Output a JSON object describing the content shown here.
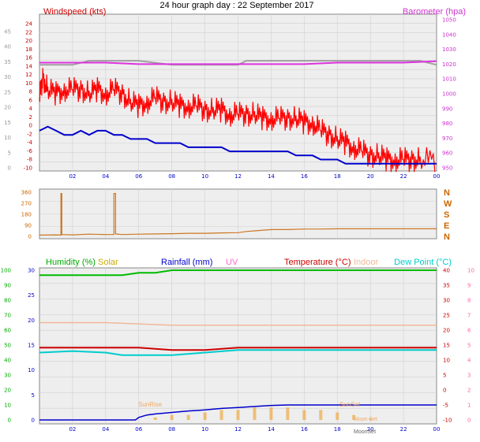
{
  "title": "24 hour graph day : 22 September 2017",
  "colors": {
    "windspeed": "#cc0000",
    "gust": "#ff0000",
    "avgwind": "#0000cc",
    "barometer": "#dd33dd",
    "baro_grey": "#a0a0a0",
    "direction": "#cc7722",
    "humidity": "#00bb00",
    "solar": "#ccaa00",
    "rainfall": "#0000cc",
    "uv": "#ff66cc",
    "temperature": "#cc0000",
    "indoor": "#f0b89a",
    "dewpoint": "#00cccc",
    "sun_bars": "#f0aa44",
    "plot_bg": "#eeeeee",
    "grid": "#d0d0d0"
  },
  "x_ticks": [
    "02",
    "04",
    "06",
    "08",
    "10",
    "12",
    "14",
    "16",
    "18",
    "20",
    "22",
    "00"
  ],
  "chart_data": [
    {
      "type": "line",
      "title": "Windspeed / Barometer",
      "left_label": "Windspeed (kts)",
      "right_label": "Barometer (hpa)",
      "left_ticks_red": [
        "24",
        "22",
        "20",
        "18",
        "16",
        "14",
        "12",
        "10",
        "8",
        "6",
        "4",
        "2",
        "0",
        "-2",
        "-4",
        "-6",
        "-8",
        "-10"
      ],
      "left_ticks_grey": [
        "45",
        "40",
        "35",
        "30",
        "25",
        "20",
        "15",
        "10",
        "5",
        "0"
      ],
      "right_ticks": [
        "1050",
        "1040",
        "1030",
        "1020",
        "1010",
        "1000",
        "990",
        "980",
        "970",
        "960",
        "950"
      ],
      "ylim_left": [
        -10,
        25
      ],
      "ylim_right": [
        950,
        1050
      ],
      "series": [
        {
          "key": "gust",
          "points": [
            [
              0.0,
              7
            ],
            [
              0.2,
              12
            ],
            [
              0.5,
              9
            ],
            [
              1,
              8
            ],
            [
              1.5,
              9
            ],
            [
              2,
              9
            ],
            [
              2.5,
              9
            ],
            [
              3,
              8
            ],
            [
              3.5,
              9
            ],
            [
              4,
              8
            ],
            [
              4.5,
              9
            ],
            [
              5,
              8
            ],
            [
              5.5,
              6
            ],
            [
              6,
              5
            ],
            [
              6.5,
              6
            ],
            [
              7,
              7
            ],
            [
              7.5,
              6
            ],
            [
              8,
              6
            ],
            [
              8.5,
              5
            ],
            [
              9,
              5
            ],
            [
              9.5,
              5
            ],
            [
              10,
              4
            ],
            [
              10.5,
              4
            ],
            [
              11,
              4
            ],
            [
              11.5,
              3
            ],
            [
              12,
              3
            ],
            [
              12.5,
              3
            ],
            [
              13,
              3
            ],
            [
              13.5,
              2
            ],
            [
              14,
              2
            ],
            [
              14.5,
              2
            ],
            [
              15,
              2
            ],
            [
              15.5,
              2
            ],
            [
              16,
              1
            ],
            [
              16.5,
              1
            ],
            [
              17,
              -1
            ],
            [
              17.5,
              -2
            ],
            [
              18,
              -3
            ],
            [
              18.5,
              -4
            ],
            [
              19,
              -5
            ],
            [
              19.5,
              -6
            ],
            [
              20,
              -7
            ],
            [
              20.5,
              -7
            ],
            [
              21,
              -8
            ],
            [
              21.5,
              -8
            ],
            [
              22,
              -8
            ],
            [
              22.5,
              -8
            ],
            [
              23,
              -8
            ],
            [
              24,
              -8
            ]
          ]
        },
        {
          "key": "avgwind",
          "points": [
            [
              0,
              -1
            ],
            [
              0.5,
              0
            ],
            [
              1,
              -1
            ],
            [
              1.5,
              -2
            ],
            [
              2,
              -2
            ],
            [
              2.5,
              -1
            ],
            [
              3,
              -2
            ],
            [
              3.5,
              -1
            ],
            [
              4,
              -1
            ],
            [
              4.5,
              -2
            ],
            [
              5,
              -2
            ],
            [
              5.5,
              -3
            ],
            [
              6,
              -3
            ],
            [
              6.5,
              -3
            ],
            [
              7,
              -4
            ],
            [
              7.5,
              -4
            ],
            [
              8,
              -4
            ],
            [
              8.5,
              -4
            ],
            [
              9,
              -5
            ],
            [
              9.5,
              -5
            ],
            [
              10,
              -5
            ],
            [
              10.5,
              -5
            ],
            [
              11,
              -5
            ],
            [
              11.5,
              -6
            ],
            [
              12,
              -6
            ],
            [
              12.5,
              -6
            ],
            [
              13,
              -6
            ],
            [
              13.5,
              -6
            ],
            [
              14,
              -6
            ],
            [
              14.5,
              -6
            ],
            [
              15,
              -6
            ],
            [
              15.5,
              -7
            ],
            [
              16,
              -7
            ],
            [
              16.5,
              -7
            ],
            [
              17,
              -8
            ],
            [
              17.5,
              -8
            ],
            [
              18,
              -8
            ],
            [
              18.5,
              -9
            ],
            [
              19,
              -9
            ],
            [
              19.5,
              -9
            ],
            [
              20,
              -9
            ],
            [
              20.5,
              -9
            ],
            [
              21,
              -9
            ],
            [
              22,
              -9
            ],
            [
              23,
              -9
            ],
            [
              24,
              -9
            ]
          ]
        },
        {
          "key": "barometer",
          "points": [
            [
              0,
              1021
            ],
            [
              2,
              1021
            ],
            [
              4,
              1021
            ],
            [
              6,
              1020
            ],
            [
              8,
              1020
            ],
            [
              10,
              1020
            ],
            [
              12,
              1020
            ],
            [
              14,
              1020
            ],
            [
              16,
              1020
            ],
            [
              18,
              1021
            ],
            [
              20,
              1021
            ],
            [
              22,
              1021
            ],
            [
              24,
              1022
            ]
          ]
        },
        {
          "key": "baro_grey",
          "points": [
            [
              0,
              15
            ],
            [
              2,
              15
            ],
            [
              3,
              16
            ],
            [
              6,
              16
            ],
            [
              8,
              15
            ],
            [
              12,
              15
            ],
            [
              12.5,
              16
            ],
            [
              14,
              16
            ],
            [
              18,
              16
            ],
            [
              20,
              16
            ],
            [
              23,
              16
            ],
            [
              24,
              15
            ]
          ]
        }
      ]
    },
    {
      "type": "line",
      "title": "Wind direction",
      "ticks": [
        "360",
        "270",
        "180",
        "90",
        "0"
      ],
      "dir_labels": [
        "N",
        "W",
        "S",
        "E",
        "N"
      ],
      "ylim": [
        0,
        360
      ],
      "series": [
        {
          "key": "direction",
          "points": [
            [
              0,
              10
            ],
            [
              1,
              12
            ],
            [
              1.3,
              10
            ],
            [
              1.3,
              350
            ],
            [
              1.35,
              350
            ],
            [
              1.35,
              15
            ],
            [
              2,
              12
            ],
            [
              3,
              18
            ],
            [
              4,
              15
            ],
            [
              4.5,
              15
            ],
            [
              4.5,
              350
            ],
            [
              4.6,
              350
            ],
            [
              4.6,
              20
            ],
            [
              5,
              15
            ],
            [
              6,
              18
            ],
            [
              7,
              20
            ],
            [
              8,
              22
            ],
            [
              9,
              25
            ],
            [
              10,
              25
            ],
            [
              11,
              28
            ],
            [
              12,
              30
            ],
            [
              12.5,
              40
            ],
            [
              13,
              45
            ],
            [
              14,
              55
            ],
            [
              15,
              55
            ],
            [
              16,
              60
            ],
            [
              17,
              60
            ],
            [
              18,
              62
            ],
            [
              19,
              62
            ],
            [
              20,
              62
            ],
            [
              21,
              62
            ],
            [
              22,
              62
            ],
            [
              23,
              62
            ],
            [
              24,
              62
            ]
          ]
        }
      ]
    },
    {
      "type": "line",
      "title": "Humidity / Rainfall / Temperature",
      "labels": {
        "humidity": "Humidity (%)",
        "solar": "Solar",
        "rainfall": "Rainfall (mm)",
        "uv": "UV",
        "temperature": "Temperature (°C)",
        "indoor": "Indoor",
        "dewpoint": "Dew Point (°C)"
      },
      "left_ticks_green": [
        "100",
        "90",
        "80",
        "70",
        "60",
        "50",
        "40",
        "30",
        "20",
        "10",
        "0"
      ],
      "left_ticks_blue": [
        "30",
        "25",
        "20",
        "15",
        "10",
        "5",
        "0"
      ],
      "right_ticks_red": [
        "40",
        "35",
        "30",
        "25",
        "20",
        "15",
        "10",
        "5",
        "0",
        "-5",
        "-10"
      ],
      "right_ticks_pink": [
        "10",
        "9",
        "8",
        "7",
        "6",
        "5",
        "4",
        "3",
        "2",
        "1",
        "0"
      ],
      "ylim_temp": [
        -10,
        40
      ],
      "annotations": [
        "SunRise",
        "SunSet",
        "MoonSet",
        "Moon Set"
      ],
      "series": [
        {
          "key": "humidity",
          "points": [
            [
              0,
              29
            ],
            [
              2,
              29
            ],
            [
              4,
              29
            ],
            [
              5,
              29
            ],
            [
              6,
              29.5
            ],
            [
              7,
              29.5
            ],
            [
              8,
              30
            ],
            [
              10,
              30
            ],
            [
              12,
              30
            ],
            [
              14,
              30
            ],
            [
              16,
              30
            ],
            [
              18,
              30
            ],
            [
              20,
              30
            ],
            [
              22,
              30
            ],
            [
              24,
              30
            ]
          ]
        },
        {
          "key": "indoor",
          "points": [
            [
              0,
              19.5
            ],
            [
              4,
              19.5
            ],
            [
              8,
              19
            ],
            [
              12,
              19
            ],
            [
              16,
              19
            ],
            [
              20,
              19
            ],
            [
              24,
              19
            ]
          ]
        },
        {
          "key": "temperature",
          "points": [
            [
              0,
              14.5
            ],
            [
              2,
              14.5
            ],
            [
              4,
              14.5
            ],
            [
              6,
              14.5
            ],
            [
              8,
              14
            ],
            [
              10,
              14
            ],
            [
              12,
              14.5
            ],
            [
              14,
              14.5
            ],
            [
              16,
              14.5
            ],
            [
              18,
              14.5
            ],
            [
              20,
              14.5
            ],
            [
              22,
              14.5
            ],
            [
              24,
              14.5
            ]
          ]
        },
        {
          "key": "dewpoint",
          "points": [
            [
              0,
              13.5
            ],
            [
              2,
              13.8
            ],
            [
              4,
              13.5
            ],
            [
              5,
              13
            ],
            [
              6,
              13
            ],
            [
              8,
              13
            ],
            [
              10,
              13.5
            ],
            [
              12,
              14
            ],
            [
              14,
              14
            ],
            [
              16,
              14
            ],
            [
              18,
              14
            ],
            [
              20,
              14
            ],
            [
              22,
              14
            ],
            [
              24,
              14
            ]
          ]
        },
        {
          "key": "rainfall",
          "points": [
            [
              0,
              0
            ],
            [
              2,
              0
            ],
            [
              4,
              0
            ],
            [
              5.8,
              0
            ],
            [
              6,
              0.5
            ],
            [
              6.5,
              1
            ],
            [
              7,
              1.2
            ],
            [
              8,
              1.5
            ],
            [
              9,
              1.8
            ],
            [
              10,
              2
            ],
            [
              11,
              2.3
            ],
            [
              12,
              2.5
            ],
            [
              13,
              2.7
            ],
            [
              14,
              2.9
            ],
            [
              15,
              3
            ],
            [
              16,
              3
            ],
            [
              17,
              3
            ],
            [
              18,
              3
            ],
            [
              20,
              3
            ],
            [
              22,
              3
            ],
            [
              24,
              3
            ]
          ]
        },
        {
          "key": "solar",
          "points": [
            [
              6,
              0
            ],
            [
              7,
              0.5
            ],
            [
              8,
              1
            ],
            [
              9,
              1
            ],
            [
              10,
              1.5
            ],
            [
              11,
              2
            ],
            [
              12,
              2
            ],
            [
              13,
              2.5
            ],
            [
              14,
              2.5
            ],
            [
              15,
              2.5
            ],
            [
              16,
              2
            ],
            [
              17,
              2
            ],
            [
              18,
              1.5
            ],
            [
              19,
              1
            ],
            [
              20,
              0.3
            ],
            [
              21,
              0
            ]
          ]
        }
      ]
    }
  ]
}
